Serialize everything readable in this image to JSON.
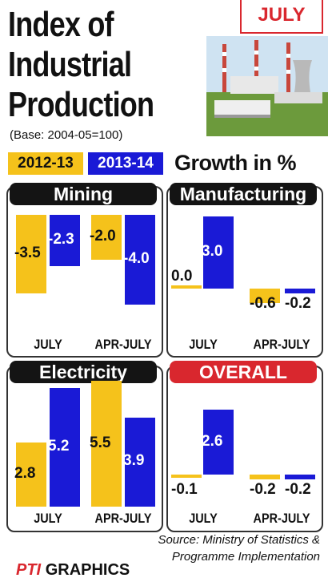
{
  "header": {
    "title_lines": [
      "Index of",
      "Industrial",
      "Production"
    ],
    "base_note": "(Base: 2004-05=100)",
    "month_badge": "JULY",
    "growth_label": "Growth in %"
  },
  "legend": [
    {
      "label": "2012-13",
      "color": "#f5c21b"
    },
    {
      "label": "2013-14",
      "color": "#1a1ad6"
    }
  ],
  "chart_data": [
    {
      "type": "bar",
      "title": "Mining",
      "categories": [
        "JULY",
        "APR-JULY"
      ],
      "series": [
        {
          "name": "2012-13",
          "values": [
            -3.5,
            -2.0
          ]
        },
        {
          "name": "2013-14",
          "values": [
            -2.3,
            -4.0
          ]
        }
      ]
    },
    {
      "type": "bar",
      "title": "Manufacturing",
      "categories": [
        "JULY",
        "APR-JULY"
      ],
      "series": [
        {
          "name": "2012-13",
          "values": [
            0.0,
            -0.6
          ]
        },
        {
          "name": "2013-14",
          "values": [
            3.0,
            -0.2
          ]
        }
      ]
    },
    {
      "type": "bar",
      "title": "Electricity",
      "categories": [
        "JULY",
        "APR-JULY"
      ],
      "series": [
        {
          "name": "2012-13",
          "values": [
            2.8,
            5.5
          ]
        },
        {
          "name": "2013-14",
          "values": [
            5.2,
            3.9
          ]
        }
      ]
    },
    {
      "type": "bar",
      "title": "OVERALL",
      "categories": [
        "JULY",
        "APR-JULY"
      ],
      "series": [
        {
          "name": "2012-13",
          "values": [
            -0.1,
            -0.2
          ]
        },
        {
          "name": "2013-14",
          "values": [
            2.6,
            -0.2
          ]
        }
      ]
    }
  ],
  "source_lines": [
    "Source: Ministry of Statistics &",
    "Programme Implementation"
  ],
  "credit": {
    "brand": "PTI",
    "label": "GRAPHICS"
  }
}
